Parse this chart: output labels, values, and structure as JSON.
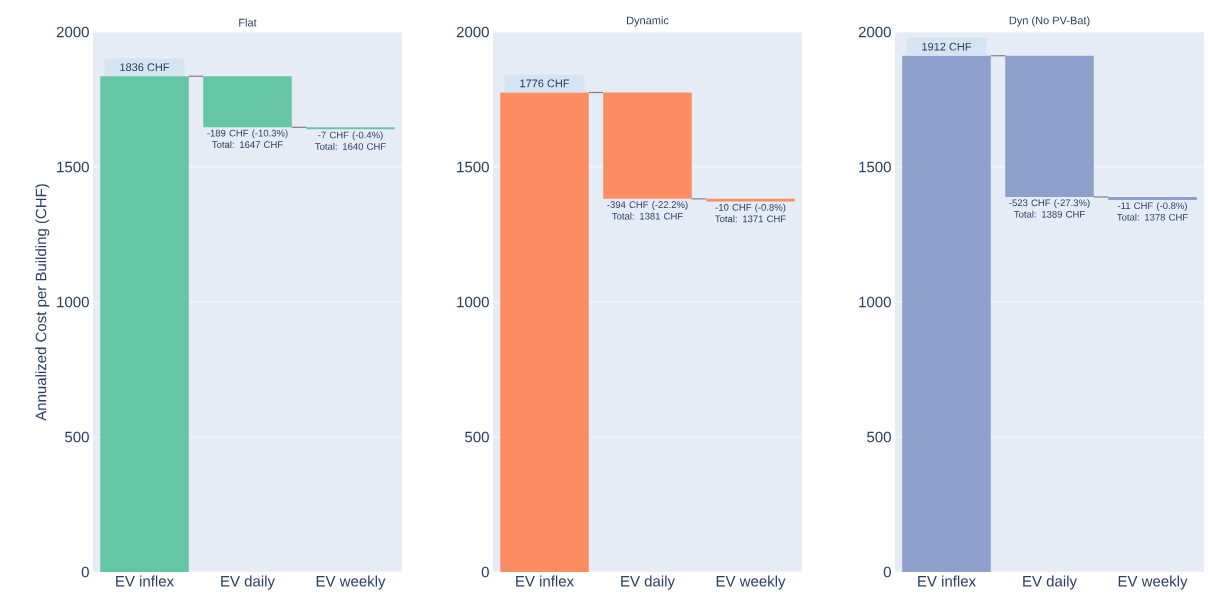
{
  "chart_data": [
    {
      "type": "bar",
      "title": "Flat",
      "ylabel": "Annualized Cost per Building (CHF)",
      "categories": [
        "EV inflex",
        "EV daily",
        "EV weekly"
      ],
      "values": [
        1836,
        -189,
        -7
      ],
      "base": [
        0,
        1836,
        1647
      ],
      "color": "#66c5a5",
      "value_labels": [
        "1836 CHF",
        "-189 CHF (-10.3%) Total: 1647 CHF",
        "-7 CHF (-0.4%) Total: 1640 CHF"
      ],
      "ylim": [
        0,
        2000
      ],
      "yticks": [
        0,
        500,
        1000,
        1500,
        2000
      ],
      "grid": "y"
    },
    {
      "type": "bar",
      "title": "Dynamic",
      "categories": [
        "EV inflex",
        "EV daily",
        "EV weekly"
      ],
      "values": [
        1776,
        -394,
        -10
      ],
      "base": [
        0,
        1776,
        1382
      ],
      "color": "#fc8d62",
      "value_labels": [
        "1776 CHF",
        "-394 CHF (-22.2%) Total: 1381 CHF",
        "-10 CHF (-0.8%) Total: 1371 CHF"
      ],
      "ylim": [
        0,
        2000
      ],
      "yticks": [
        0,
        500,
        1000,
        1500,
        2000
      ],
      "grid": "y"
    },
    {
      "type": "bar",
      "title": "Dyn (No PV-Bat)",
      "categories": [
        "EV inflex",
        "EV daily",
        "EV weekly"
      ],
      "values": [
        1912,
        -523,
        -11
      ],
      "base": [
        0,
        1912,
        1389
      ],
      "color": "#8da0cb",
      "value_labels": [
        "1912 CHF",
        "-523 CHF (-27.3%) Total: 1389 CHF",
        "-11 CHF (-0.8%) Total: 1378 CHF"
      ],
      "ylim": [
        0,
        2000
      ],
      "yticks": [
        0,
        500,
        1000,
        1500,
        2000
      ],
      "grid": "y"
    }
  ]
}
